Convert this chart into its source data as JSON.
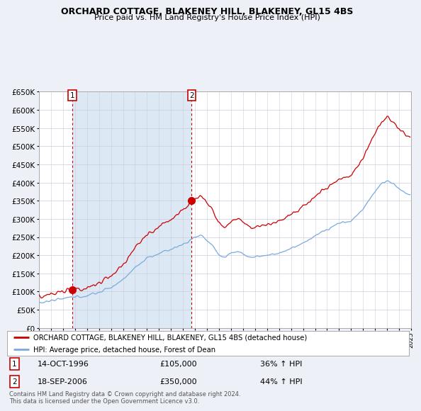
{
  "title": "ORCHARD COTTAGE, BLAKENEY HILL, BLAKENEY, GL15 4BS",
  "subtitle": "Price paid vs. HM Land Registry's House Price Index (HPI)",
  "red_label": "ORCHARD COTTAGE, BLAKENEY HILL, BLAKENEY, GL15 4BS (detached house)",
  "blue_label": "HPI: Average price, detached house, Forest of Dean",
  "annotation1_date": "14-OCT-1996",
  "annotation1_price": "£105,000",
  "annotation1_hpi": "36% ↑ HPI",
  "annotation2_date": "18-SEP-2006",
  "annotation2_price": "£350,000",
  "annotation2_hpi": "44% ↑ HPI",
  "footer": "Contains HM Land Registry data © Crown copyright and database right 2024.\nThis data is licensed under the Open Government Licence v3.0.",
  "ylim": [
    0,
    650000
  ],
  "yticks": [
    0,
    50000,
    100000,
    150000,
    200000,
    250000,
    300000,
    350000,
    400000,
    450000,
    500000,
    550000,
    600000,
    650000
  ],
  "bg_color": "#eef0f8",
  "plot_bg": "#ffffff",
  "shade_color": "#dde8f5",
  "red_color": "#cc0000",
  "blue_color": "#7aaadd",
  "grid_color": "#ccccdd",
  "marker1_year": 1996.79,
  "marker1_y": 105000,
  "marker2_year": 2006.72,
  "marker2_y": 350000,
  "xmin": 1994.0,
  "xmax": 2025.0
}
